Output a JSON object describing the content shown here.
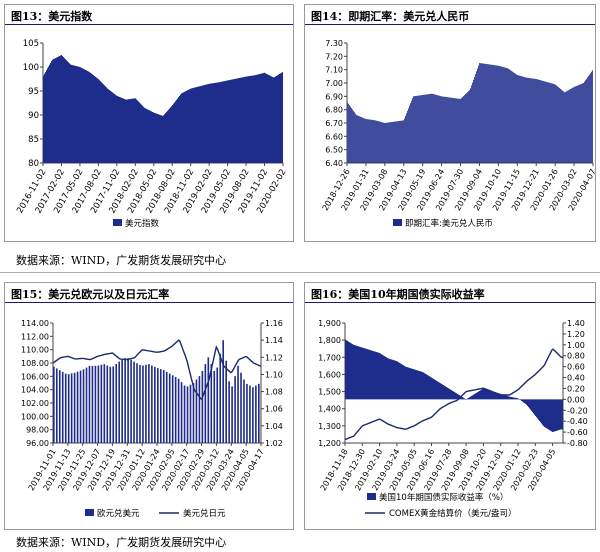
{
  "panels": {
    "p13": {
      "title": "图13：美元指数"
    },
    "p14": {
      "title": "图14：即期汇率：美元兑人民币"
    },
    "p15": {
      "title": "图15：美元兑欧元以及日元汇率"
    },
    "p16": {
      "title": "图16：美国10年期国债实际收益率"
    }
  },
  "sources": {
    "top": "数据来源：WIND，广发期货发展研究中心",
    "bottom": "数据来源：WIND，广发期货发展研究中心"
  },
  "colors": {
    "bar": "#1e2d8c",
    "line": "#1a2a6c",
    "axis": "#444444"
  },
  "chart_data": [
    {
      "id": "p13",
      "type": "bar",
      "title": "",
      "ylim": [
        80,
        105
      ],
      "yticks": [
        "80",
        "85",
        "90",
        "95",
        "100",
        "105"
      ],
      "xticks": [
        "2016-11-02",
        "2017-02-02",
        "2017-05-02",
        "2017-08-02",
        "2017-11-02",
        "2018-02-02",
        "2018-05-02",
        "2018-08-02",
        "2018-11-02",
        "2019-02-02",
        "2019-05-02",
        "2019-08-02",
        "2019-11-02",
        "2020-02-02"
      ],
      "series": [
        {
          "name": "美元指数",
          "kind": "bar",
          "x": [
            0,
            0.5,
            1,
            1.5,
            2,
            2.5,
            3,
            3.5,
            4,
            4.5,
            5,
            5.5,
            6,
            6.5,
            7,
            7.5,
            8,
            8.5,
            9,
            9.5,
            10,
            10.5,
            11,
            11.5,
            12,
            12.5,
            13,
            13.5,
            14
          ],
          "values": [
            98,
            101.5,
            102.5,
            100.5,
            100,
            99,
            97.5,
            95.5,
            94,
            93.2,
            93.5,
            91.5,
            90.5,
            89.8,
            92,
            94.5,
            95.5,
            96,
            96.5,
            96.8,
            97.2,
            97.6,
            98,
            98.3,
            98.8,
            97.8,
            99,
            102.5,
            100
          ]
        }
      ]
    },
    {
      "id": "p14",
      "type": "bar",
      "title": "",
      "ylim": [
        6.4,
        7.3
      ],
      "yticks": [
        "6.40",
        "6.50",
        "6.60",
        "6.70",
        "6.80",
        "6.90",
        "7.00",
        "7.10",
        "7.20",
        "7.30"
      ],
      "xticks": [
        "2018-12-26",
        "2019-01-31",
        "2019-03-08",
        "2019-04-13",
        "2019-05-19",
        "2019-06-24",
        "2019-07-30",
        "2019-09-04",
        "2019-10-10",
        "2019-11-15",
        "2019-12-21",
        "2020-01-26",
        "2020-03-02",
        "2020-04-07"
      ],
      "series": [
        {
          "name": "即期汇率:美元兑人民币",
          "kind": "bar",
          "x": [
            0,
            0.5,
            1,
            1.5,
            2,
            2.5,
            3,
            3.5,
            4,
            4.5,
            5,
            5.5,
            6,
            6.5,
            7,
            7.5,
            8,
            8.5,
            9,
            9.5,
            10,
            10.5,
            11,
            11.5,
            12,
            12.5,
            13,
            13.5,
            14
          ],
          "values": [
            6.86,
            6.76,
            6.73,
            6.72,
            6.7,
            6.71,
            6.72,
            6.9,
            6.91,
            6.92,
            6.9,
            6.89,
            6.88,
            6.95,
            7.15,
            7.14,
            7.13,
            7.11,
            7.06,
            7.04,
            7.03,
            7.01,
            6.99,
            6.93,
            6.97,
            7.0,
            7.1,
            7.08,
            7.07
          ]
        }
      ]
    },
    {
      "id": "p15",
      "type": "bar",
      "title": "",
      "ylim_left": [
        96,
        114
      ],
      "ylim_right": [
        1.02,
        1.16
      ],
      "yticks_left": [
        "96.00",
        "98.00",
        "100.00",
        "102.00",
        "104.00",
        "106.00",
        "108.00",
        "110.00",
        "112.00",
        "114.00"
      ],
      "yticks_right": [
        "1.02",
        "1.04",
        "1.06",
        "1.08",
        "1.10",
        "1.12",
        "1.14",
        "1.16"
      ],
      "xticks": [
        "2019-11-01",
        "2019-11-13",
        "2019-11-25",
        "2019-12-07",
        "2019-12-19",
        "2019-12-31",
        "2020-01-12",
        "2020-01-24",
        "2020-02-05",
        "2020-02-17",
        "2020-02-29",
        "2020-03-12",
        "2020-03-24",
        "2020-04-05",
        "2020-04-17"
      ],
      "series": [
        {
          "name": "欧元兑美元",
          "kind": "bar",
          "axis": "right",
          "x": [
            0,
            0.5,
            1,
            1.5,
            2,
            2.5,
            3,
            3.5,
            4,
            4.5,
            5,
            5.5,
            6,
            6.5,
            7,
            7.5,
            8,
            8.5,
            9,
            9.5,
            10,
            10.5,
            11,
            11.5,
            12,
            12.5,
            13,
            13.5,
            14,
            14.5
          ],
          "values": [
            1.11,
            1.105,
            1.1,
            1.102,
            1.105,
            1.11,
            1.11,
            1.112,
            1.108,
            1.115,
            1.12,
            1.115,
            1.11,
            1.112,
            1.108,
            1.105,
            1.1,
            1.095,
            1.085,
            1.09,
            1.1,
            1.12,
            1.1,
            1.14,
            1.08,
            1.11,
            1.09,
            1.085,
            1.09,
            1.09
          ]
        },
        {
          "name": "美元兑日元",
          "kind": "line",
          "axis": "left",
          "x": [
            0,
            0.5,
            1,
            1.5,
            2,
            2.5,
            3,
            3.5,
            4,
            4.5,
            5,
            5.5,
            6,
            6.5,
            7,
            7.5,
            8,
            8.5,
            9,
            9.5,
            10,
            10.5,
            11,
            11.5,
            12,
            12.5,
            13,
            13.5,
            14,
            14.5
          ],
          "values": [
            108,
            108.8,
            109,
            108.6,
            108.7,
            108.5,
            109,
            109.3,
            109.5,
            108.6,
            108.5,
            108.8,
            110,
            109.8,
            109.6,
            109.8,
            110.5,
            111.5,
            108.5,
            104,
            102.5,
            105.5,
            110.5,
            107.5,
            106.5,
            108.5,
            109,
            108,
            107.5,
            107.5
          ]
        }
      ]
    },
    {
      "id": "p16",
      "type": "bar",
      "title": "",
      "ylim_left": [
        1200,
        1900
      ],
      "ylim_right": [
        -0.8,
        1.4
      ],
      "yticks_left": [
        "1,200",
        "1,300",
        "1,400",
        "1,500",
        "1,600",
        "1,700",
        "1,800",
        "1,900"
      ],
      "yticks_right": [
        "-0.80",
        "-0.60",
        "-0.40",
        "-0.20",
        "0.00",
        "0.20",
        "0.40",
        "0.60",
        "0.80",
        "1.00",
        "1.20",
        "1.40"
      ],
      "xticks": [
        "2018-11-18",
        "2018-12-30",
        "2019-02-10",
        "2019-03-24",
        "2019-05-05",
        "2019-06-16",
        "2019-07-28",
        "2019-09-08",
        "2019-10-20",
        "2019-12-01",
        "2020-01-12",
        "2020-02-23",
        "2020-04-05"
      ],
      "series": [
        {
          "name": "美国10年期国债实际收益率（%）",
          "kind": "bar",
          "axis": "right",
          "x": [
            0,
            0.5,
            1,
            1.5,
            2,
            2.5,
            3,
            3.5,
            4,
            4.5,
            5,
            5.5,
            6,
            6.5,
            7,
            7.5,
            8,
            8.5,
            9,
            9.5,
            10,
            10.5,
            11,
            11.5,
            12,
            12.5
          ],
          "values": [
            1.1,
            1.0,
            0.95,
            0.9,
            0.85,
            0.75,
            0.7,
            0.6,
            0.55,
            0.5,
            0.4,
            0.3,
            0.2,
            0.1,
            0.0,
            0.1,
            0.2,
            0.15,
            0.1,
            0.05,
            0.02,
            -0.1,
            -0.3,
            -0.5,
            -0.6,
            -0.55
          ]
        },
        {
          "name": "COMEX黄金结算价（美元/盎司）",
          "kind": "line",
          "axis": "left",
          "x": [
            0,
            0.5,
            1,
            1.5,
            2,
            2.5,
            3,
            3.5,
            4,
            4.5,
            5,
            5.5,
            6,
            6.5,
            7,
            7.5,
            8,
            8.5,
            9,
            9.5,
            10,
            10.5,
            11,
            11.5,
            12,
            12.5
          ],
          "values": [
            1220,
            1240,
            1300,
            1320,
            1340,
            1310,
            1290,
            1280,
            1300,
            1330,
            1350,
            1400,
            1430,
            1450,
            1500,
            1510,
            1520,
            1500,
            1480,
            1480,
            1510,
            1560,
            1600,
            1650,
            1750,
            1700
          ]
        }
      ]
    }
  ]
}
